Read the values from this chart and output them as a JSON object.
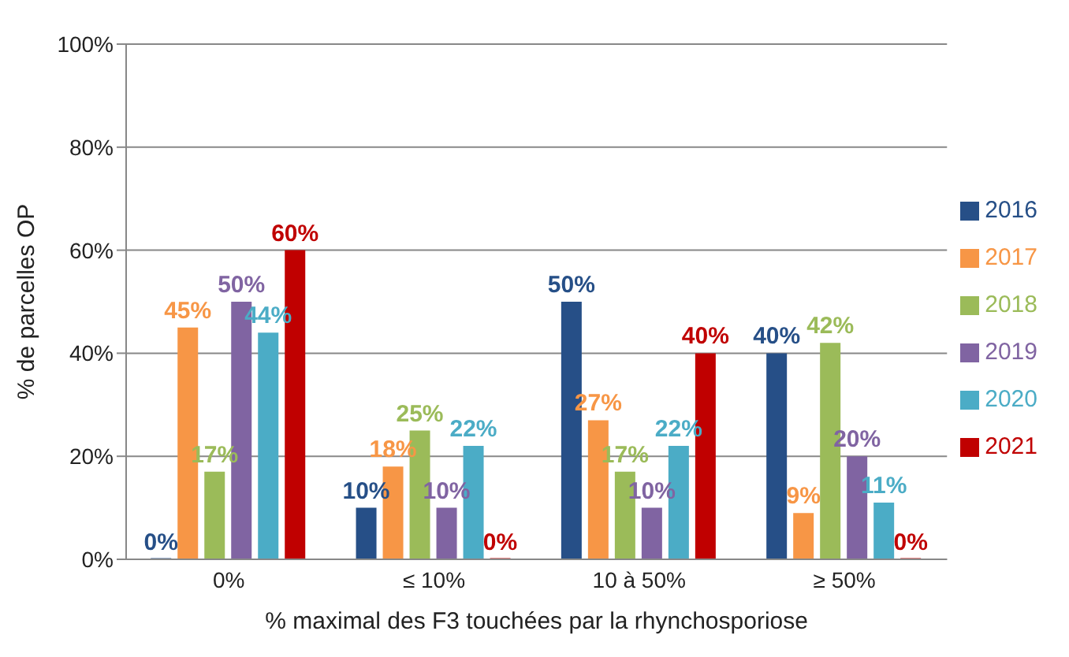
{
  "chart_data": {
    "type": "bar",
    "xlabel": "% maximal des F3 touchées par la rhynchosporiose",
    "ylabel": "% de parcelles OP",
    "categories": [
      "0%",
      "≤ 10%",
      "10 à 50%",
      "≥ 50%"
    ],
    "series": [
      {
        "name": "2016",
        "color": "#264f87",
        "values": [
          0,
          10,
          50,
          40
        ],
        "value_labels": [
          "0%",
          "10%",
          "50%",
          "40%"
        ]
      },
      {
        "name": "2017",
        "color": "#f79646",
        "values": [
          45,
          18,
          27,
          9
        ],
        "value_labels": [
          "45%",
          "18%",
          "27%",
          "9%"
        ]
      },
      {
        "name": "2018",
        "color": "#9bbb59",
        "values": [
          17,
          25,
          17,
          42
        ],
        "value_labels": [
          "17%",
          "25%",
          "17%",
          "42%"
        ]
      },
      {
        "name": "2019",
        "color": "#8064a2",
        "values": [
          50,
          10,
          10,
          20
        ],
        "value_labels": [
          "50%",
          "10%",
          "10%",
          "20%"
        ]
      },
      {
        "name": "2020",
        "color": "#4bacc6",
        "values": [
          44,
          22,
          22,
          11
        ],
        "value_labels": [
          "44%",
          "22%",
          "22%",
          "11%"
        ]
      },
      {
        "name": "2021",
        "color": "#c00000",
        "values": [
          60,
          0,
          40,
          0
        ],
        "value_labels": [
          "60%",
          "0%",
          "40%",
          "0%"
        ]
      }
    ],
    "ylim": [
      0,
      100
    ],
    "yticks": [
      {
        "value": 0,
        "label": "0%"
      },
      {
        "value": 20,
        "label": "20%"
      },
      {
        "value": 40,
        "label": "40%"
      },
      {
        "value": 60,
        "label": "60%"
      },
      {
        "value": 80,
        "label": "80%"
      },
      {
        "value": 100,
        "label": "100%"
      }
    ],
    "grid": "y",
    "legend": "right"
  }
}
